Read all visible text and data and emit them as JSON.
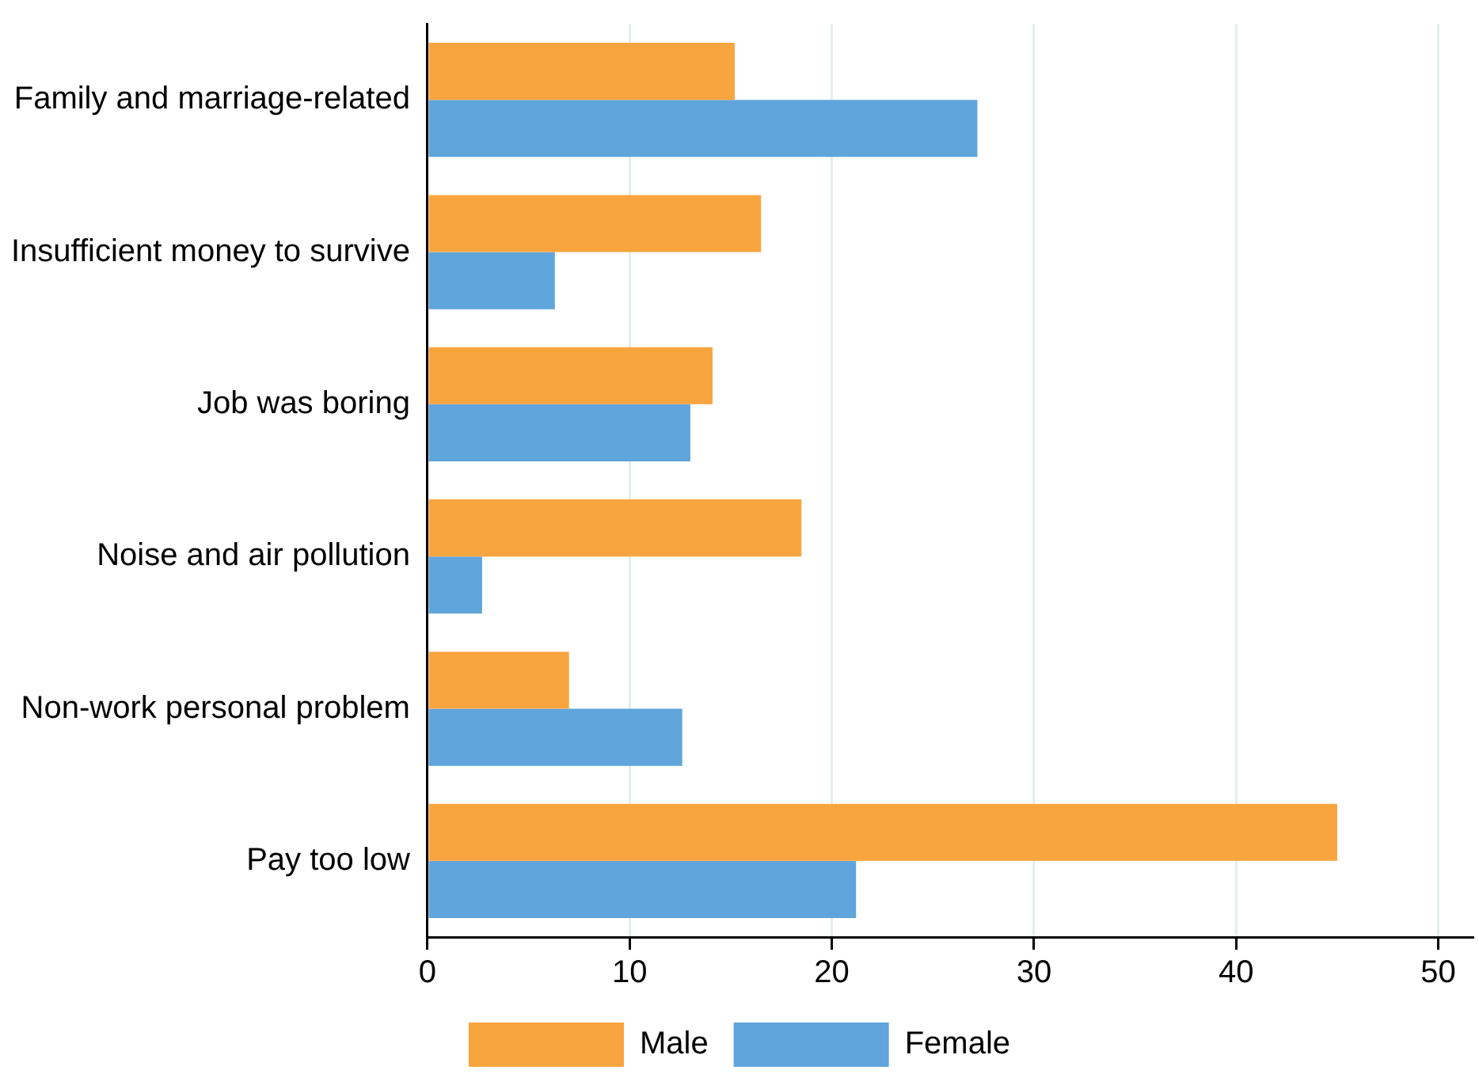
{
  "chart_data": {
    "type": "bar",
    "orientation": "horizontal",
    "categories": [
      "Family and marriage-related",
      "Insufficient money to survive",
      "Job was boring",
      "Noise and air pollution",
      "Non-work personal problem",
      "Pay too low"
    ],
    "series": [
      {
        "name": "Male",
        "color": "#f9a53f",
        "values": [
          15.2,
          16.5,
          14.1,
          18.5,
          7.0,
          45.0
        ]
      },
      {
        "name": "Female",
        "color": "#5fa5db",
        "values": [
          27.2,
          6.3,
          13.0,
          2.7,
          12.6,
          21.2
        ]
      }
    ],
    "xlim": [
      0,
      51.7
    ],
    "xticks": [
      0,
      10,
      20,
      30,
      40,
      50
    ],
    "grid": "x",
    "legend": "bottom"
  }
}
